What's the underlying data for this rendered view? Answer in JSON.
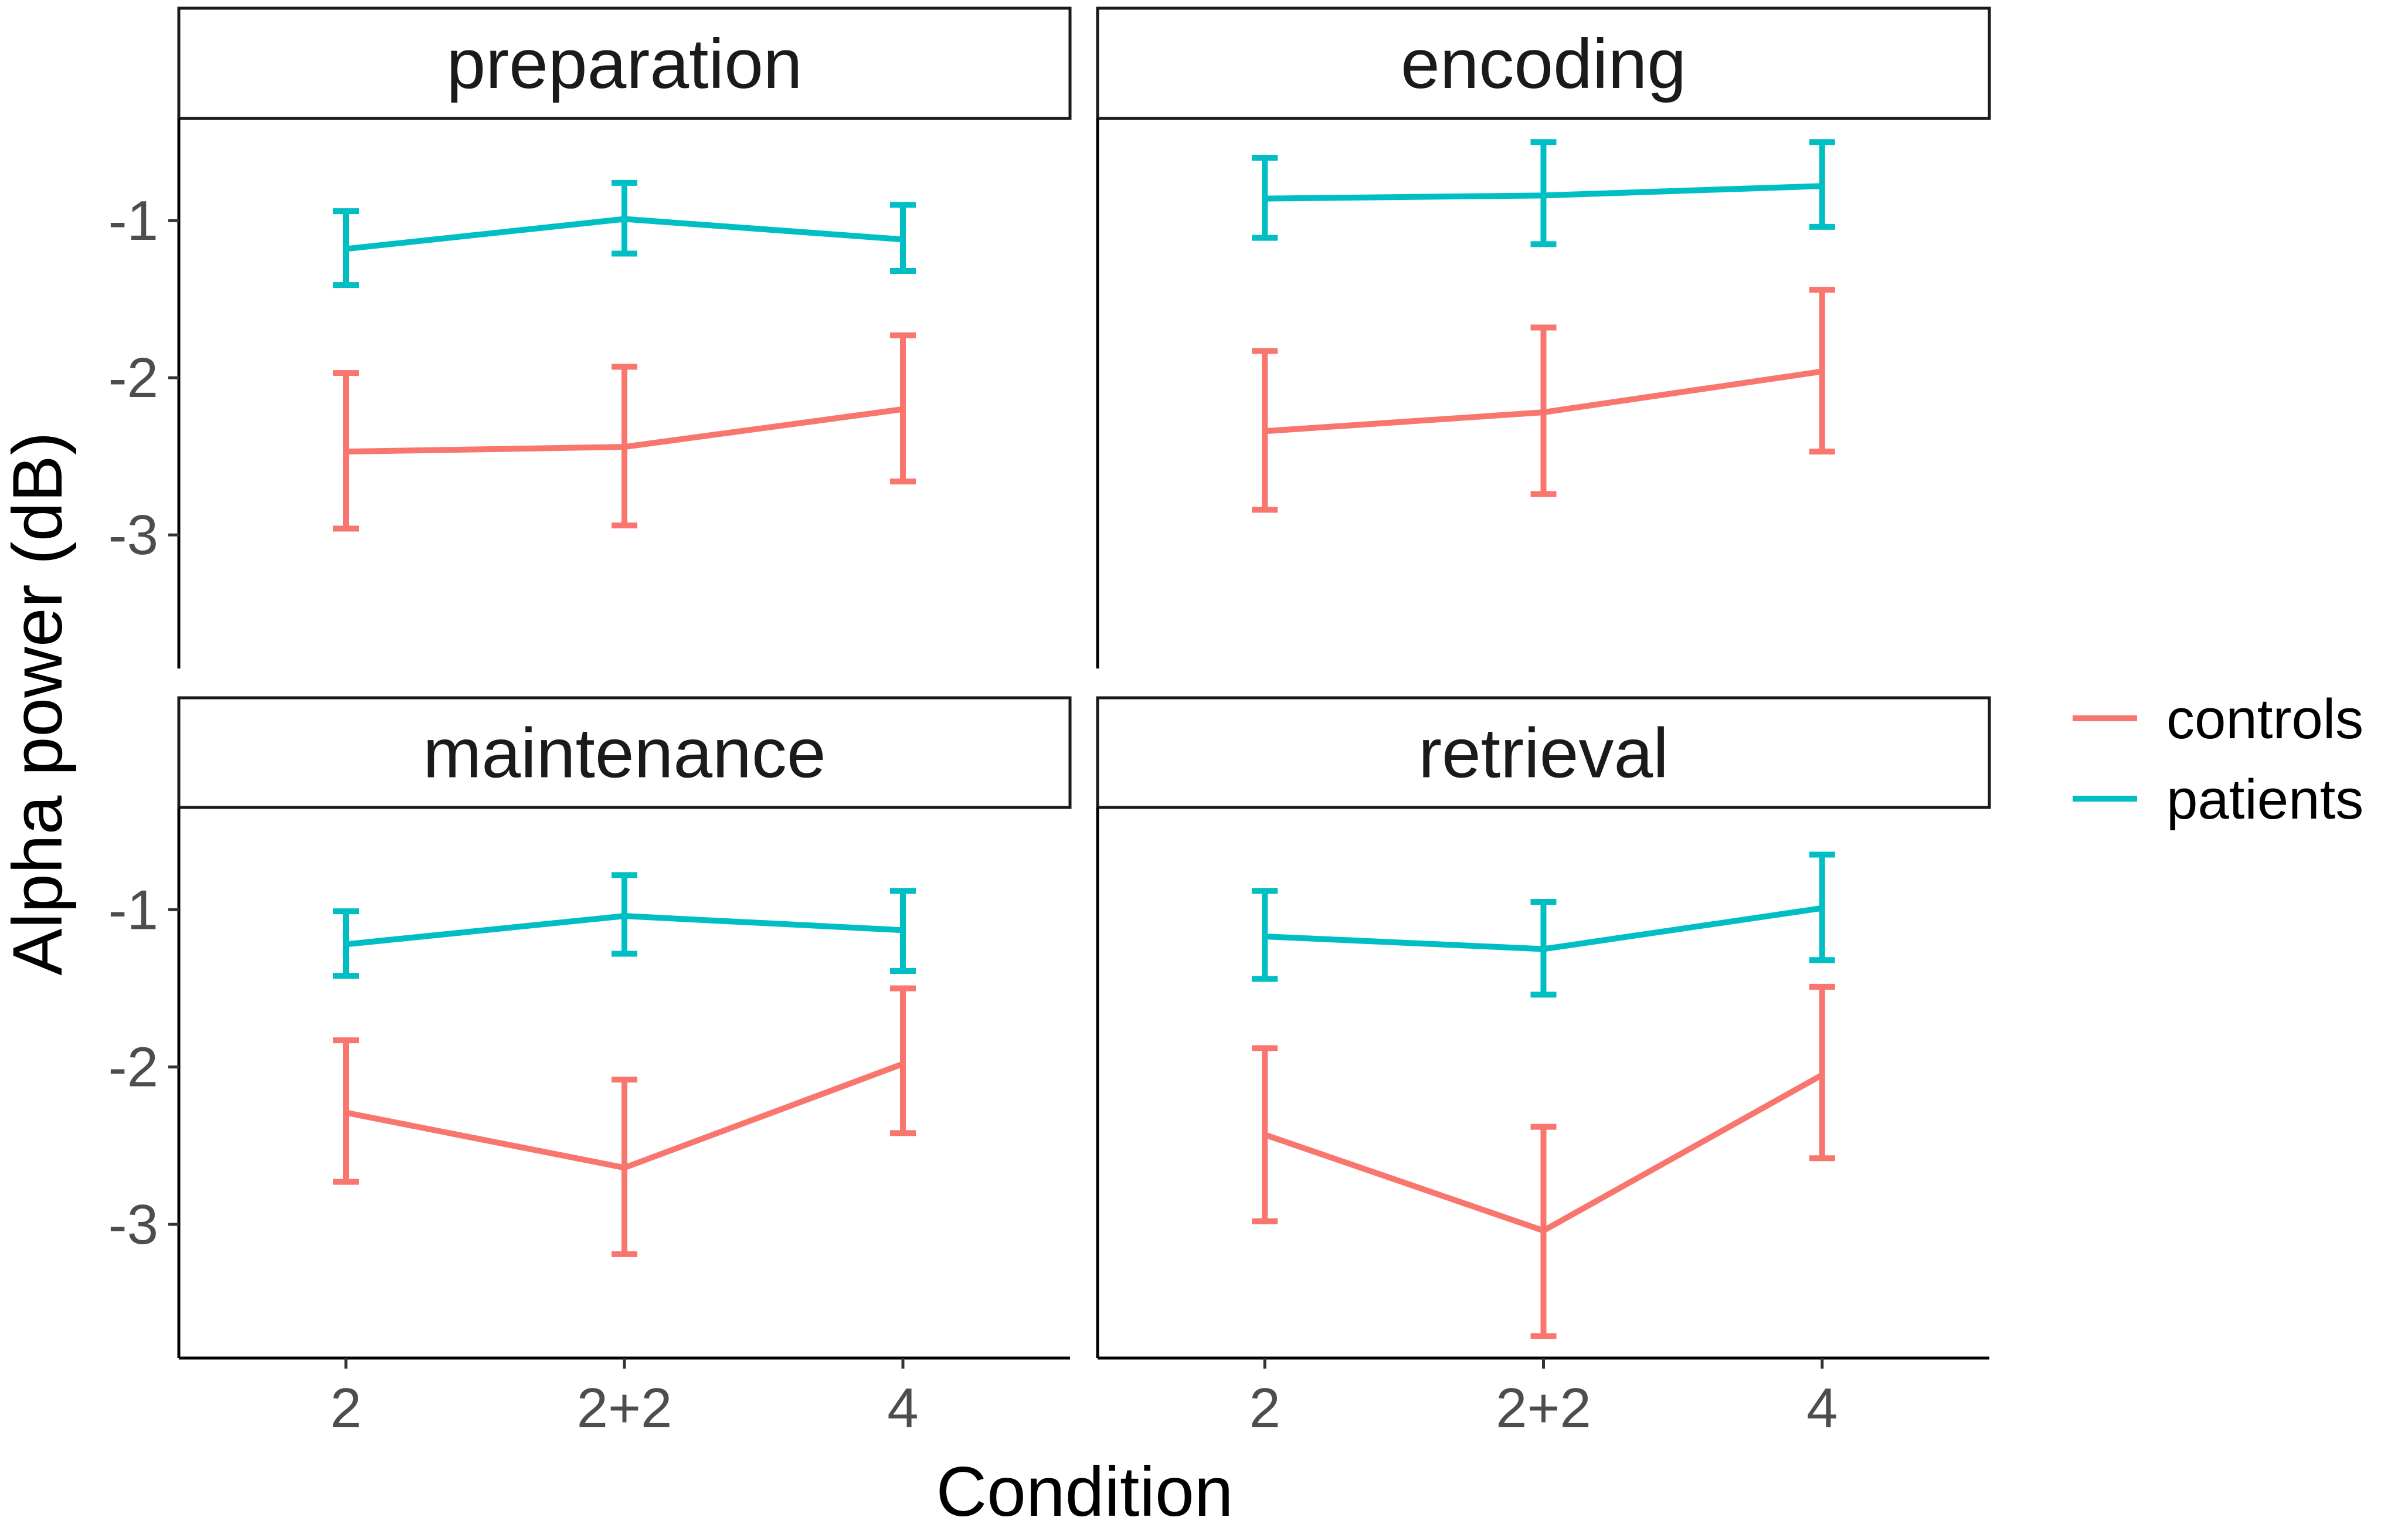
{
  "chart_data": {
    "type": "line",
    "title": "",
    "xlabel": "Condition",
    "ylabel": "Alpha power (dB)",
    "categories": [
      "2",
      "2+2",
      "4"
    ],
    "ylim": [
      -3.85,
      -0.35
    ],
    "yticks": [
      -1,
      -2,
      -3
    ],
    "ytick_labels": [
      "-1",
      "-2",
      "-3"
    ],
    "legend": {
      "position": "right",
      "entries": [
        {
          "name": "controls",
          "color": "#F8766D"
        },
        {
          "name": "patients",
          "color": "#00BFC4"
        }
      ]
    },
    "panels": [
      {
        "title": "preparation",
        "series": [
          {
            "name": "controls",
            "mean": [
              -2.47,
              -2.44,
              -2.2
            ],
            "lower": [
              -2.96,
              -2.94,
              -2.66
            ],
            "upper": [
              -1.97,
              -1.93,
              -1.73
            ]
          },
          {
            "name": "patients",
            "mean": [
              -1.18,
              -0.99,
              -1.12
            ],
            "lower": [
              -1.41,
              -1.21,
              -1.32
            ],
            "upper": [
              -0.94,
              -0.76,
              -0.9
            ]
          }
        ]
      },
      {
        "title": "encoding",
        "series": [
          {
            "name": "controls",
            "mean": [
              -2.34,
              -2.22,
              -1.96
            ],
            "lower": [
              -2.84,
              -2.74,
              -2.47
            ],
            "upper": [
              -1.83,
              -1.68,
              -1.44
            ]
          },
          {
            "name": "patients",
            "mean": [
              -0.86,
              -0.84,
              -0.78
            ],
            "lower": [
              -1.11,
              -1.15,
              -1.04
            ],
            "upper": [
              -0.6,
              -0.5,
              -0.5
            ]
          }
        ]
      },
      {
        "title": "maintenance",
        "series": [
          {
            "name": "controls",
            "mean": [
              -2.29,
              -2.64,
              -1.98
            ],
            "lower": [
              -2.73,
              -3.19,
              -2.42
            ],
            "upper": [
              -1.83,
              -2.08,
              -1.5
            ]
          },
          {
            "name": "patients",
            "mean": [
              -1.22,
              -1.04,
              -1.13
            ],
            "lower": [
              -1.42,
              -1.28,
              -1.39
            ],
            "upper": [
              -1.01,
              -0.78,
              -0.88
            ]
          }
        ]
      },
      {
        "title": "retrieval",
        "series": [
          {
            "name": "controls",
            "mean": [
              -2.43,
              -3.04,
              -2.05
            ],
            "lower": [
              -2.98,
              -3.71,
              -2.58
            ],
            "upper": [
              -1.88,
              -2.38,
              -1.49
            ]
          },
          {
            "name": "patients",
            "mean": [
              -1.17,
              -1.25,
              -0.99
            ],
            "lower": [
              -1.44,
              -1.54,
              -1.32
            ],
            "upper": [
              -0.88,
              -0.95,
              -0.65
            ]
          }
        ]
      }
    ]
  }
}
